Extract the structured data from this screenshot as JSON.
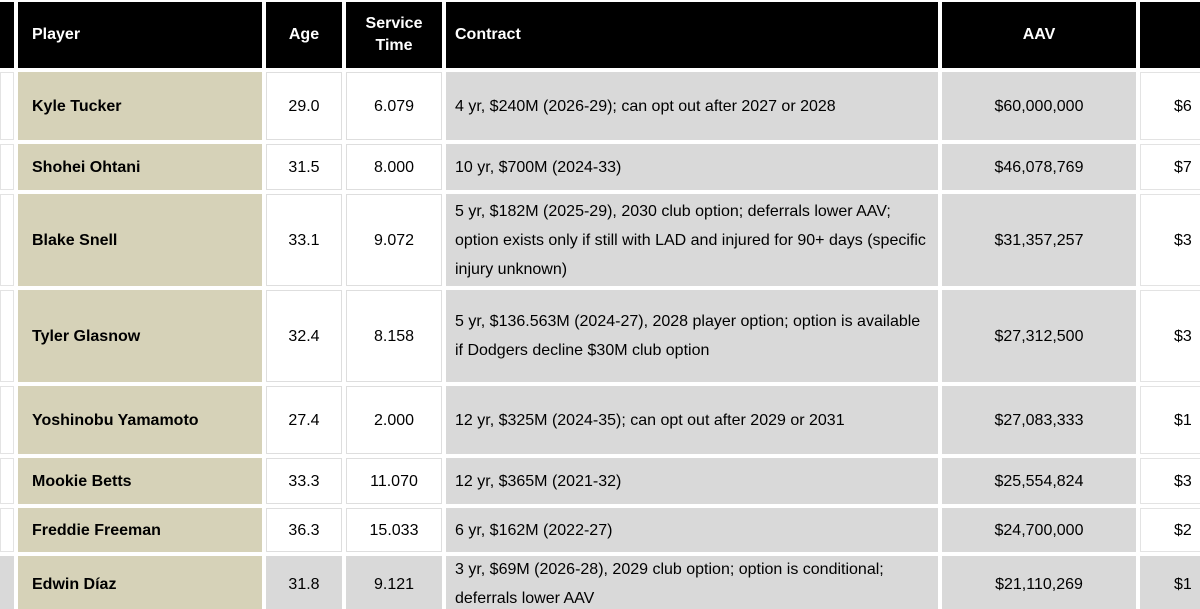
{
  "table": {
    "header": {
      "player": "Player",
      "age": "Age",
      "service_time": "Service Time",
      "contract": "Contract",
      "aav": "AAV"
    },
    "rows": [
      {
        "player": "Kyle Tucker",
        "age": "29.0",
        "service_time": "6.079",
        "contract": "4 yr, $240M (2026-29); can opt out after 2027 or 2028",
        "aav": "$60,000,000",
        "next_col_partial": "$6"
      },
      {
        "player": "Shohei Ohtani",
        "age": "31.5",
        "service_time": "8.000",
        "contract": "10 yr, $700M (2024-33)",
        "aav": "$46,078,769",
        "next_col_partial": "$7"
      },
      {
        "player": "Blake Snell",
        "age": "33.1",
        "service_time": "9.072",
        "contract": "5 yr, $182M (2025-29), 2030 club option; deferrals lower AAV; option exists only if still with LAD and injured for 90+ days (specific injury unknown)",
        "aav": "$31,357,257",
        "next_col_partial": "$3"
      },
      {
        "player": "Tyler Glasnow",
        "age": "32.4",
        "service_time": "8.158",
        "contract": "5 yr, $136.563M (2024-27), 2028 player option; option is available if Dodgers decline $30M club option",
        "aav": "$27,312,500",
        "next_col_partial": "$3"
      },
      {
        "player": "Yoshinobu Yamamoto",
        "age": "27.4",
        "service_time": "2.000",
        "contract": "12 yr, $325M (2024-35); can opt out after 2029 or 2031",
        "aav": "$27,083,333",
        "next_col_partial": "$1"
      },
      {
        "player": "Mookie Betts",
        "age": "33.3",
        "service_time": "11.070",
        "contract": "12 yr, $365M (2021-32)",
        "aav": "$25,554,824",
        "next_col_partial": "$3"
      },
      {
        "player": "Freddie Freeman",
        "age": "36.3",
        "service_time": "15.033",
        "contract": "6 yr, $162M (2022-27)",
        "aav": "$24,700,000",
        "next_col_partial": "$2"
      },
      {
        "player": "Edwin Díaz",
        "age": "31.8",
        "service_time": "9.121",
        "contract": "3 yr, $69M (2026-28), 2029 club option; option is conditional; deferrals lower AAV",
        "aav": "$21,110,269",
        "next_col_partial": "$1"
      }
    ]
  },
  "colors": {
    "header_bg": "#000000",
    "header_text": "#ffffff",
    "player_column_bg": "#d6d2b8",
    "gray_cell_bg": "#d9d9d9",
    "white_cell_bg": "#ffffff",
    "text": "#000000"
  }
}
